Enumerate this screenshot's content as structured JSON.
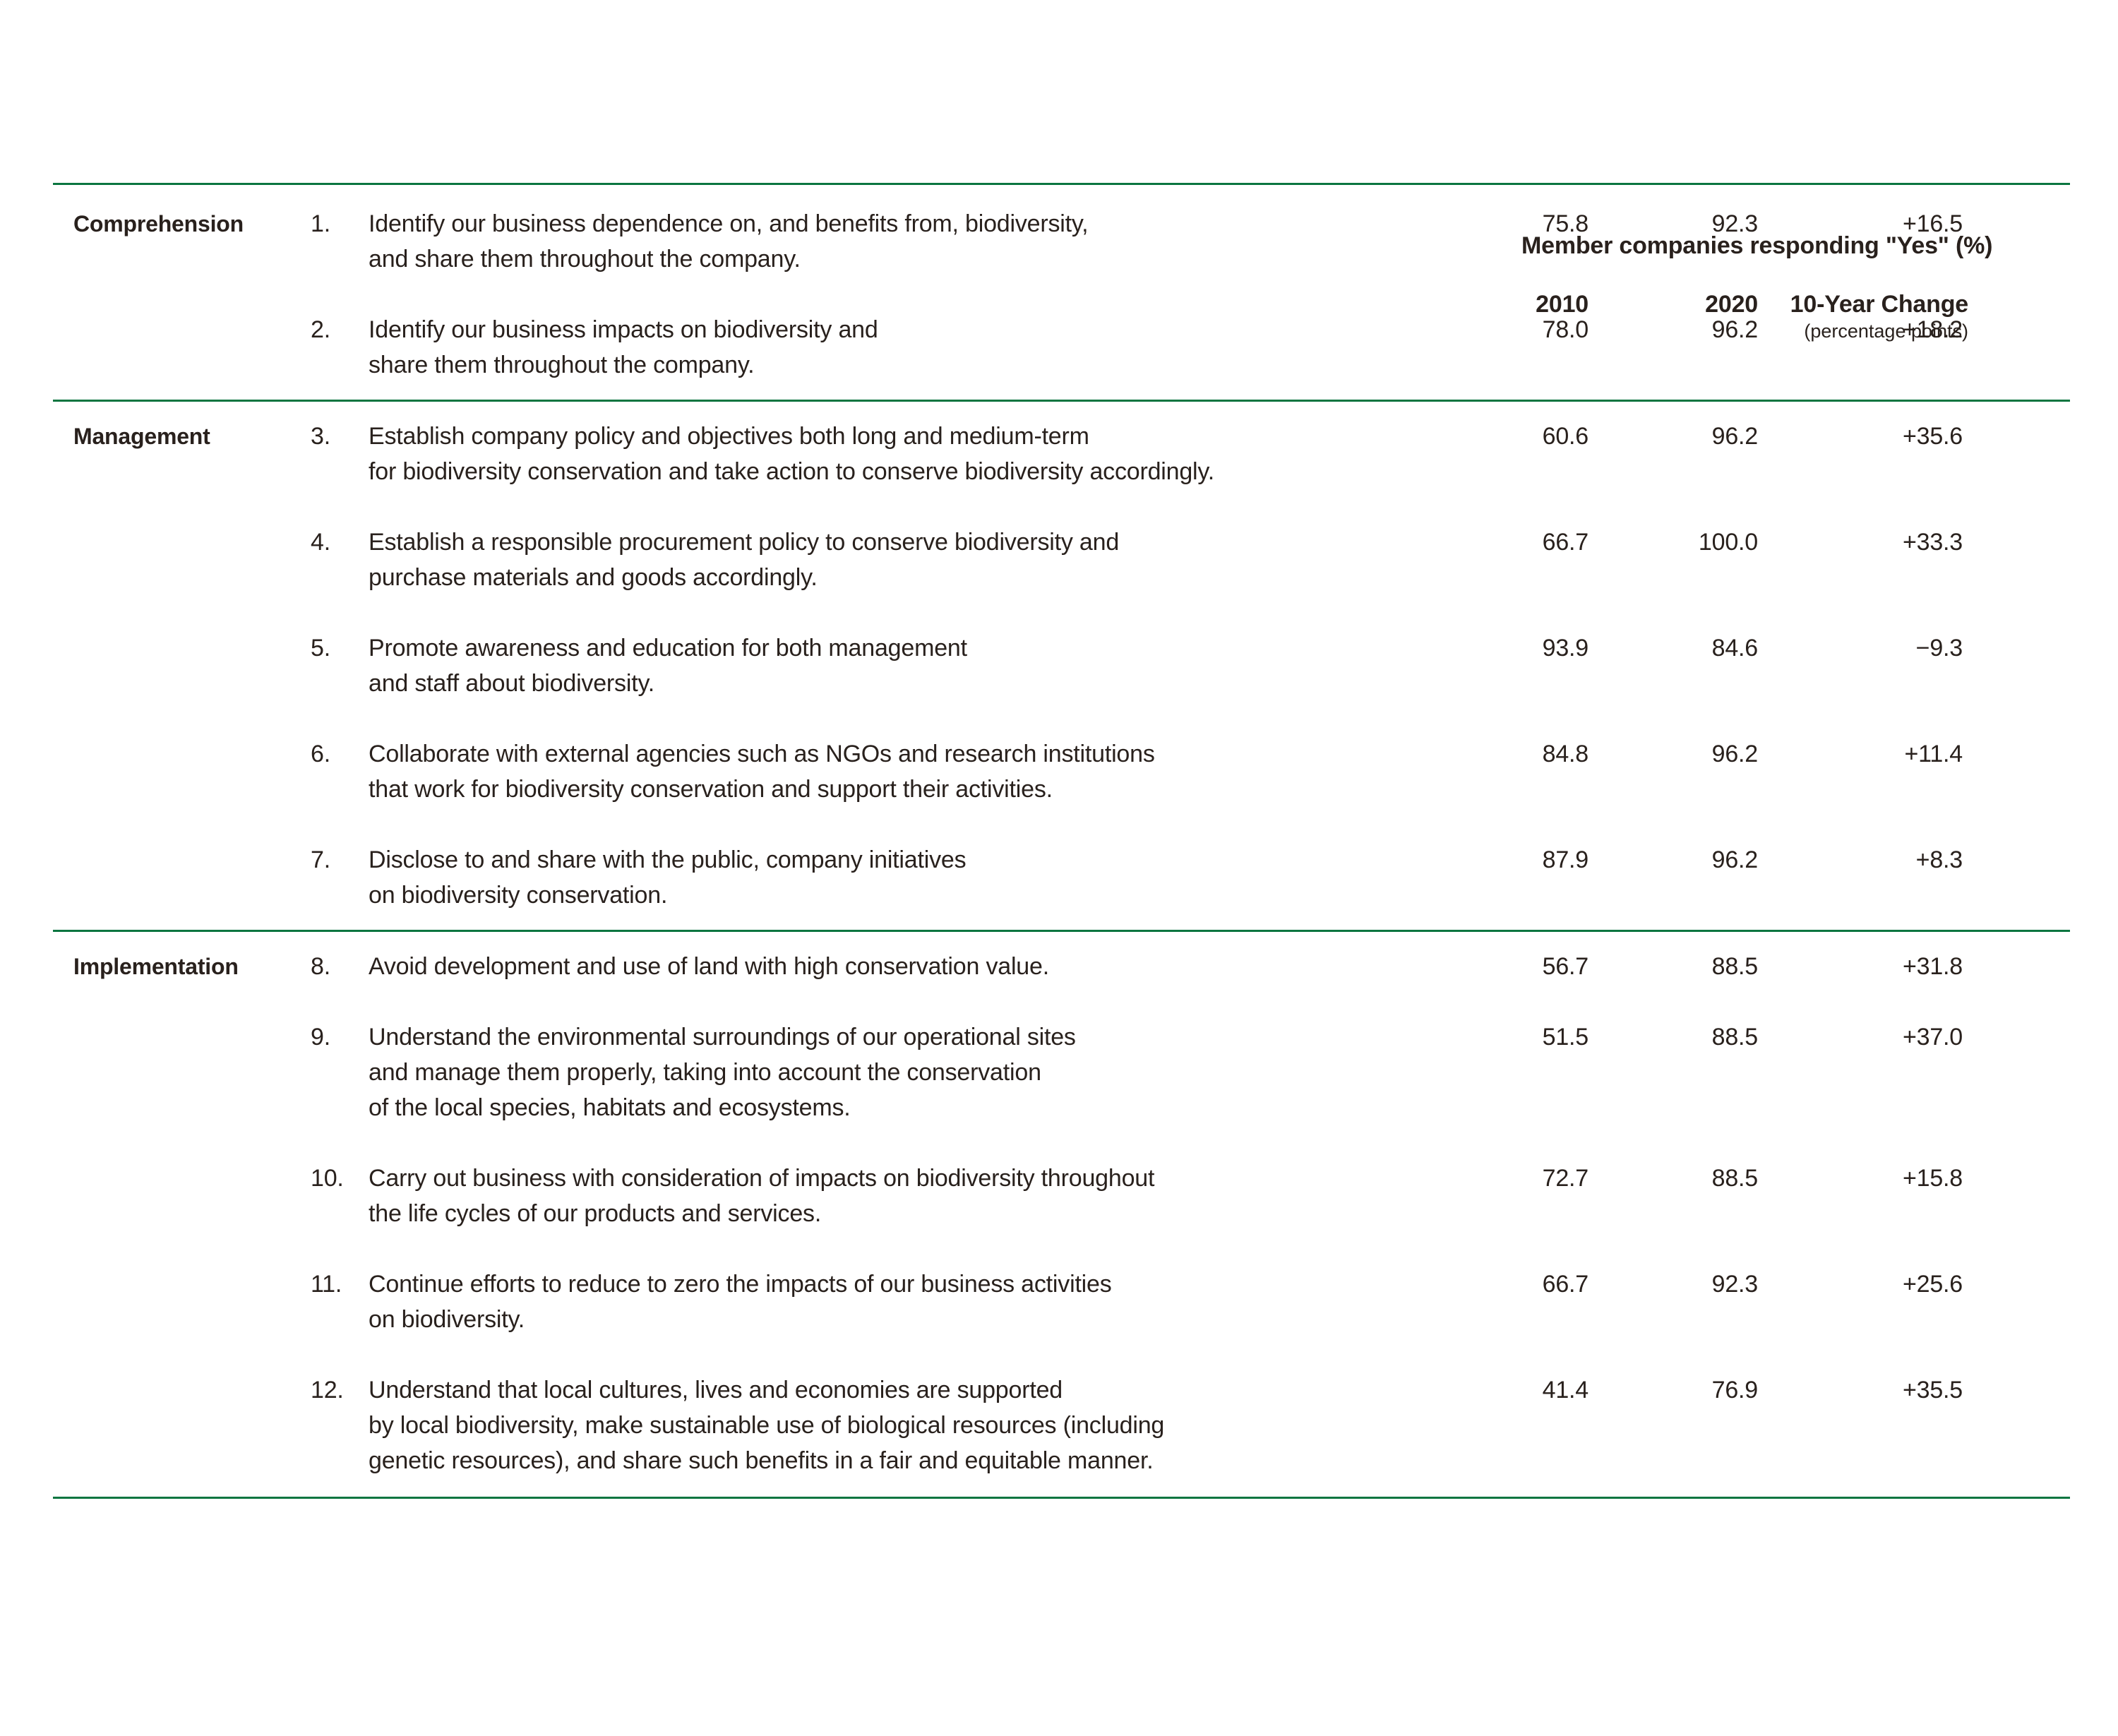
{
  "header": {
    "title": "Member companies responding \"Yes\" (%)",
    "col_2010": "2010",
    "col_2020": "2020",
    "col_change": "10-Year Change",
    "col_change_sub": "(percentage points)"
  },
  "colors": {
    "rule_green": "#0b7540",
    "text": "#29211d"
  },
  "sections": [
    {
      "category": "Comprehension",
      "rows": [
        {
          "num": "1.",
          "lines": [
            "Identify our business dependence on, and benefits from, biodiversity,",
            "and share them throughout the company."
          ],
          "y2010": "75.8",
          "y2020": "92.3",
          "change": "+16.5"
        },
        {
          "num": "2.",
          "lines": [
            "Identify our business impacts on biodiversity and",
            "share them throughout the company."
          ],
          "y2010": "78.0",
          "y2020": "96.2",
          "change": "+18.2"
        }
      ]
    },
    {
      "category": "Management",
      "rows": [
        {
          "num": "3.",
          "lines": [
            "Establish company policy and objectives both long and medium-term",
            "for biodiversity conservation and take action to conserve biodiversity accordingly."
          ],
          "y2010": "60.6",
          "y2020": "96.2",
          "change": "+35.6"
        },
        {
          "num": "4.",
          "lines": [
            "Establish a responsible procurement policy to conserve biodiversity and",
            "purchase materials and goods accordingly."
          ],
          "y2010": "66.7",
          "y2020": "100.0",
          "change": "+33.3"
        },
        {
          "num": "5.",
          "lines": [
            "Promote awareness and education for both management",
            "and staff about biodiversity."
          ],
          "y2010": "93.9",
          "y2020": "84.6",
          "change": "−9.3"
        },
        {
          "num": "6.",
          "lines": [
            "Collaborate with external agencies such as NGOs and research institutions",
            "that work for biodiversity conservation and support their activities."
          ],
          "y2010": "84.8",
          "y2020": "96.2",
          "change": "+11.4"
        },
        {
          "num": "7.",
          "lines": [
            "Disclose to and share with the public, company initiatives",
            "on biodiversity conservation."
          ],
          "y2010": "87.9",
          "y2020": "96.2",
          "change": "+8.3"
        }
      ]
    },
    {
      "category": "Implementation",
      "rows": [
        {
          "num": "8.",
          "lines": [
            "Avoid development and use of land with high conservation value."
          ],
          "y2010": "56.7",
          "y2020": "88.5",
          "change": "+31.8"
        },
        {
          "num": "9.",
          "lines": [
            "Understand the environmental surroundings of our operational sites",
            "and manage them properly, taking into account the conservation",
            "of the local species, habitats and ecosystems."
          ],
          "y2010": "51.5",
          "y2020": "88.5",
          "change": "+37.0"
        },
        {
          "num": "10.",
          "lines": [
            "Carry out business with consideration of impacts on biodiversity throughout",
            "the life cycles of our products and services."
          ],
          "y2010": "72.7",
          "y2020": "88.5",
          "change": "+15.8"
        },
        {
          "num": "11.",
          "lines": [
            "Continue efforts to reduce to zero the impacts of our business activities",
            "on biodiversity."
          ],
          "y2010": "66.7",
          "y2020": "92.3",
          "change": "+25.6"
        },
        {
          "num": "12.",
          "lines": [
            "Understand that local cultures, lives and economies are supported",
            "by local biodiversity, make sustainable use of biological resources (including",
            "genetic resources), and share such benefits in a fair and equitable manner."
          ],
          "y2010": "41.4",
          "y2020": "76.9",
          "change": "+35.5"
        }
      ]
    }
  ]
}
